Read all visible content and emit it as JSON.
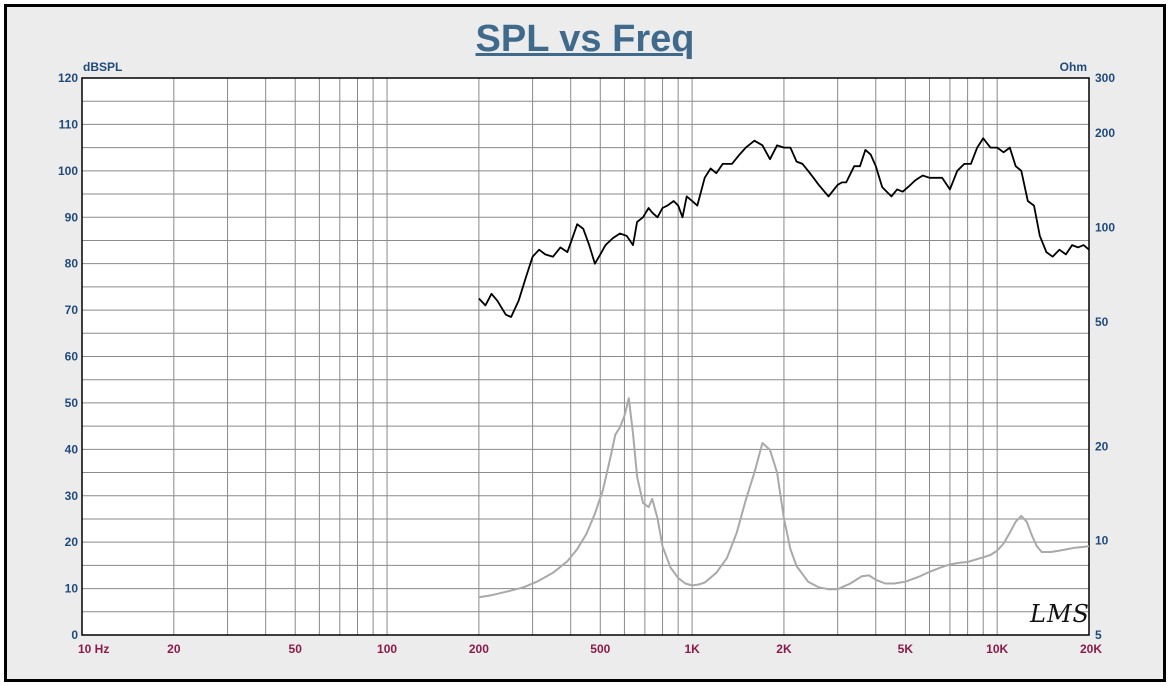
{
  "title": "SPL vs Freq",
  "watermark": "LMS",
  "colors": {
    "title": "#3f6a8c",
    "left_axis_labels": "#1f4a7a",
    "x_axis_labels": "#8b1a4a",
    "spl_line": "#000000",
    "impedance_line": "#a9a9a9",
    "grid": "#8a8a8a",
    "plot_bg": "#ffffff"
  },
  "chart_data": {
    "type": "line",
    "title": "SPL vs Freq",
    "x_scale": "log",
    "xlim": [
      10,
      20000
    ],
    "x_ticks": [
      {
        "value": 10,
        "label": "10  Hz"
      },
      {
        "value": 20,
        "label": "20"
      },
      {
        "value": 50,
        "label": "50"
      },
      {
        "value": 100,
        "label": "100"
      },
      {
        "value": 200,
        "label": "200"
      },
      {
        "value": 500,
        "label": "500"
      },
      {
        "value": 1000,
        "label": "1K"
      },
      {
        "value": 2000,
        "label": "2K"
      },
      {
        "value": 5000,
        "label": "5K"
      },
      {
        "value": 10000,
        "label": "10K"
      },
      {
        "value": 20000,
        "label": "20K"
      }
    ],
    "ylabel_left": "dBSPL",
    "ylim_left": [
      0,
      120
    ],
    "y_ticks_left": [
      0,
      10,
      20,
      30,
      40,
      50,
      60,
      70,
      80,
      90,
      100,
      110,
      120
    ],
    "ylabel_right": "Ohm",
    "right_scale": "log",
    "ylim_right": [
      5,
      300
    ],
    "y_ticks_right": [
      5,
      10,
      20,
      50,
      100,
      200,
      300
    ],
    "grid": true,
    "series": [
      {
        "axis": "left",
        "color": "#000000",
        "x": [
          200,
          210,
          220,
          230,
          245,
          255,
          270,
          285,
          300,
          315,
          330,
          350,
          370,
          390,
          405,
          420,
          440,
          460,
          480,
          500,
          520,
          550,
          580,
          610,
          640,
          660,
          690,
          720,
          740,
          770,
          800,
          830,
          870,
          900,
          930,
          960,
          1000,
          1040,
          1100,
          1150,
          1200,
          1260,
          1350,
          1430,
          1500,
          1600,
          1700,
          1800,
          1900,
          2000,
          2100,
          2200,
          2300,
          2400,
          2500,
          2600,
          2800,
          3000,
          3100,
          3200,
          3400,
          3550,
          3700,
          3850,
          4000,
          4200,
          4500,
          4700,
          4900,
          5100,
          5400,
          5700,
          6000,
          6300,
          6600,
          7000,
          7400,
          7800,
          8200,
          8600,
          9000,
          9500,
          10000,
          10500,
          11000,
          11500,
          12000,
          12600,
          13200,
          13800,
          14500,
          15200,
          16000,
          16800,
          17600,
          18400,
          19200,
          20000
        ],
        "y": [
          72.5,
          71,
          73.5,
          72,
          69,
          68.5,
          72,
          77,
          81.5,
          83,
          82,
          81.5,
          83.5,
          82.5,
          85.5,
          88.5,
          87.5,
          84,
          80,
          82,
          84,
          85.5,
          86.5,
          86,
          84,
          89,
          90,
          92,
          91,
          90,
          92,
          92.5,
          93.5,
          92.5,
          90,
          94.5,
          93.5,
          92.5,
          98.5,
          100.5,
          99.5,
          101.5,
          101.5,
          103.5,
          105,
          106.5,
          105.5,
          102.5,
          105.5,
          105,
          105,
          102,
          101.5,
          100,
          98.5,
          97,
          94.5,
          97,
          97.5,
          97.5,
          101,
          101,
          104.5,
          103.5,
          101,
          96.5,
          94.5,
          96,
          95.5,
          96.5,
          98,
          99,
          98.5,
          98.5,
          98.5,
          96,
          100,
          101.5,
          101.5,
          105,
          107,
          105,
          105,
          104,
          105,
          101,
          100,
          93.5,
          92.5,
          86,
          82.5,
          81.5,
          83,
          82,
          84,
          83.5,
          84,
          83
        ]
      },
      {
        "axis": "right",
        "color": "#a9a9a9",
        "x": [
          200,
          220,
          250,
          280,
          310,
          350,
          390,
          420,
          450,
          480,
          510,
          540,
          560,
          580,
          600,
          620,
          640,
          660,
          690,
          720,
          740,
          770,
          800,
          850,
          900,
          950,
          1000,
          1050,
          1100,
          1200,
          1300,
          1400,
          1500,
          1600,
          1700,
          1800,
          1900,
          2000,
          2100,
          2200,
          2400,
          2600,
          2800,
          3000,
          3300,
          3600,
          3800,
          4000,
          4300,
          4600,
          5000,
          5500,
          6000,
          6500,
          7000,
          7500,
          8000,
          8500,
          9000,
          9500,
          10000,
          10500,
          11000,
          11500,
          12000,
          12500,
          13000,
          13500,
          14000,
          15000,
          16000,
          17000,
          18000,
          19000,
          20000
        ],
        "y": [
          6.6,
          6.7,
          6.9,
          7.1,
          7.4,
          7.9,
          8.6,
          9.4,
          10.5,
          12.2,
          14.5,
          18.5,
          21.8,
          23,
          25,
          28.5,
          22,
          16,
          13.2,
          12.8,
          13.6,
          11.8,
          9.6,
          8.2,
          7.6,
          7.3,
          7.2,
          7.25,
          7.35,
          7.9,
          8.8,
          10.6,
          13.5,
          16.5,
          20.5,
          19.5,
          16.5,
          11.8,
          9.4,
          8.3,
          7.4,
          7.1,
          7.0,
          7.0,
          7.3,
          7.7,
          7.75,
          7.5,
          7.3,
          7.3,
          7.4,
          7.65,
          7.95,
          8.2,
          8.4,
          8.5,
          8.55,
          8.7,
          8.85,
          9.0,
          9.3,
          9.8,
          10.6,
          11.5,
          12.0,
          11.5,
          10.4,
          9.6,
          9.2,
          9.2,
          9.3,
          9.4,
          9.5,
          9.55,
          9.6
        ]
      }
    ]
  }
}
